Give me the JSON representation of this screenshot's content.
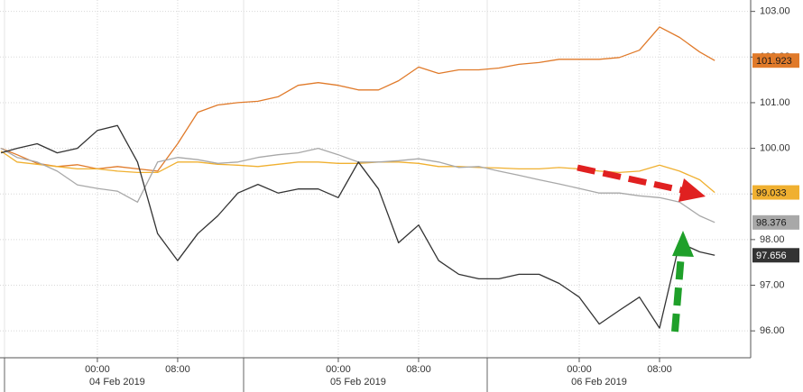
{
  "chart_data": {
    "type": "line",
    "x": [
      -9.6,
      -8,
      -6,
      -4,
      -2,
      0,
      2,
      4,
      6,
      8,
      10,
      12,
      14,
      16,
      18,
      20,
      22,
      24,
      26,
      28,
      30,
      32,
      34,
      36,
      38,
      40,
      42,
      44,
      46,
      48,
      50,
      52,
      54,
      56,
      58,
      60,
      61.5
    ],
    "series": [
      {
        "color": "#e07a2a",
        "tag_text": "#1a1a1a",
        "values": [
          100.0,
          99.86,
          99.67,
          99.6,
          99.64,
          99.55,
          99.6,
          99.55,
          99.5,
          100.1,
          100.79,
          100.95,
          101.0,
          101.03,
          101.13,
          101.38,
          101.44,
          101.38,
          101.28,
          101.28,
          101.48,
          101.78,
          101.64,
          101.72,
          101.72,
          101.76,
          101.84,
          101.88,
          101.95,
          101.95,
          101.95,
          101.99,
          102.15,
          102.66,
          102.43,
          102.11,
          101.923
        ]
      },
      {
        "color": "#f0b030",
        "tag_text": "#1a1a1a",
        "values": [
          99.94,
          99.7,
          99.65,
          99.6,
          99.55,
          99.55,
          99.5,
          99.47,
          99.47,
          99.7,
          99.7,
          99.65,
          99.63,
          99.6,
          99.65,
          99.7,
          99.7,
          99.67,
          99.67,
          99.7,
          99.7,
          99.67,
          99.6,
          99.6,
          99.58,
          99.57,
          99.55,
          99.55,
          99.58,
          99.55,
          99.5,
          99.47,
          99.5,
          99.63,
          99.5,
          99.31,
          99.033
        ]
      },
      {
        "color": "#a8a8a8",
        "tag_text": "#1a1a1a",
        "values": [
          100.0,
          99.8,
          99.7,
          99.5,
          99.2,
          99.12,
          99.06,
          98.82,
          99.7,
          99.8,
          99.75,
          99.67,
          99.7,
          99.8,
          99.86,
          99.9,
          100.0,
          99.86,
          99.7,
          99.7,
          99.73,
          99.77,
          99.7,
          99.58,
          99.6,
          99.5,
          99.41,
          99.31,
          99.22,
          99.12,
          99.02,
          99.02,
          98.96,
          98.92,
          98.82,
          98.52,
          98.376
        ]
      },
      {
        "color": "#333333",
        "tag_text": "#ffffff",
        "values": [
          99.9,
          100.0,
          100.1,
          99.9,
          100.0,
          100.39,
          100.5,
          99.7,
          98.13,
          97.54,
          98.13,
          98.52,
          99.02,
          99.21,
          99.02,
          99.11,
          99.11,
          98.92,
          99.7,
          99.11,
          97.93,
          98.32,
          97.54,
          97.24,
          97.14,
          97.14,
          97.24,
          97.24,
          97.04,
          96.74,
          96.15,
          96.45,
          96.74,
          96.06,
          97.93,
          97.73,
          97.656
        ]
      }
    ],
    "xlim": [
      -9.7,
      64.9
    ],
    "xticks": [
      {
        "value": 0,
        "label": "00:00"
      },
      {
        "value": 8,
        "label": "08:00"
      },
      {
        "value": 24,
        "label": "00:00"
      },
      {
        "value": 32,
        "label": "08:00"
      },
      {
        "value": 48,
        "label": "00:00"
      },
      {
        "value": 56,
        "label": "08:00"
      }
    ],
    "date_ticks": [
      {
        "value": 0,
        "label": "04 Feb 2019"
      },
      {
        "value": 24,
        "label": "05 Feb 2019"
      },
      {
        "value": 48,
        "label": "06 Feb 2019"
      }
    ],
    "ylim": [
      95.45,
      103.25
    ],
    "yticks": [
      {
        "value": 96,
        "label": "96.00"
      },
      {
        "value": 97,
        "label": "97.00"
      },
      {
        "value": 98,
        "label": "98.00"
      },
      {
        "value": 99,
        "label": "99.00"
      },
      {
        "value": 100,
        "label": "100.00"
      },
      {
        "value": 101,
        "label": "101.00"
      },
      {
        "value": 102,
        "label": "102.00"
      },
      {
        "value": 103,
        "label": "103.00"
      }
    ],
    "grid": true
  }
}
